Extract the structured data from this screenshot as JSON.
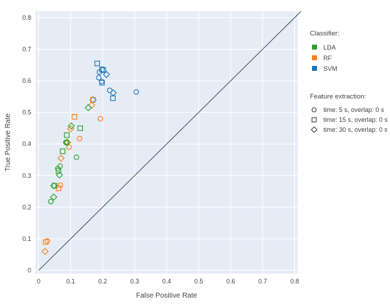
{
  "chart_data": {
    "type": "scatter",
    "xlabel": "False Positive Rate",
    "ylabel": "True Positive Rate",
    "xlim": [
      -0.01,
      0.81
    ],
    "ylim": [
      -0.01,
      0.82
    ],
    "xticks": [
      0,
      0.1,
      0.2,
      0.3,
      0.4,
      0.5,
      0.6,
      0.7,
      0.8
    ],
    "yticks": [
      0,
      0.1,
      0.2,
      0.3,
      0.4,
      0.5,
      0.6,
      0.7,
      0.8
    ],
    "tick_labels": {
      "x": [
        "0",
        "0.1",
        "0.2",
        "0.3",
        "0.4",
        "0.5",
        "0.6",
        "0.7",
        "0.8"
      ],
      "y": [
        "0",
        "0.1",
        "0.2",
        "0.3",
        "0.4",
        "0.5",
        "0.6",
        "0.7",
        "0.8"
      ]
    },
    "grid": true,
    "diagonal_line": [
      [
        0,
        0
      ],
      [
        0.82,
        0.82
      ]
    ],
    "legend": {
      "placement": "right",
      "classifier_title": "Classifier:",
      "classifiers": [
        {
          "name": "LDA",
          "color": "#2ca02c"
        },
        {
          "name": "RF",
          "color": "#ff7f0e"
        },
        {
          "name": "SVM",
          "color": "#1f77b4"
        }
      ],
      "feature_title": "Feature extraction:",
      "features": [
        {
          "name": "time: 5 s, overlap: 0 s",
          "marker": "circle"
        },
        {
          "name": "time: 15 s, overlap: 0 s",
          "marker": "square"
        },
        {
          "name": "time: 30 s, overlap: 0 s",
          "marker": "diamond"
        }
      ]
    },
    "points": [
      {
        "x": 0.305,
        "y": 0.565,
        "classifier": "SVM",
        "marker": "circle"
      },
      {
        "x": 0.222,
        "y": 0.57,
        "classifier": "SVM",
        "marker": "circle"
      },
      {
        "x": 0.188,
        "y": 0.61,
        "classifier": "SVM",
        "marker": "circle"
      },
      {
        "x": 0.19,
        "y": 0.628,
        "classifier": "SVM",
        "marker": "circle"
      },
      {
        "x": 0.197,
        "y": 0.598,
        "classifier": "SVM",
        "marker": "circle"
      },
      {
        "x": 0.183,
        "y": 0.655,
        "classifier": "SVM",
        "marker": "square"
      },
      {
        "x": 0.198,
        "y": 0.636,
        "classifier": "SVM",
        "marker": "square"
      },
      {
        "x": 0.202,
        "y": 0.634,
        "classifier": "SVM",
        "marker": "square"
      },
      {
        "x": 0.198,
        "y": 0.594,
        "classifier": "SVM",
        "marker": "square"
      },
      {
        "x": 0.232,
        "y": 0.545,
        "classifier": "SVM",
        "marker": "square"
      },
      {
        "x": 0.212,
        "y": 0.62,
        "classifier": "SVM",
        "marker": "diamond"
      },
      {
        "x": 0.233,
        "y": 0.562,
        "classifier": "SVM",
        "marker": "diamond"
      },
      {
        "x": 0.17,
        "y": 0.54,
        "classifier": "SVM",
        "marker": "diamond"
      },
      {
        "x": 0.193,
        "y": 0.48,
        "classifier": "RF",
        "marker": "circle"
      },
      {
        "x": 0.128,
        "y": 0.417,
        "classifier": "RF",
        "marker": "circle"
      },
      {
        "x": 0.095,
        "y": 0.39,
        "classifier": "RF",
        "marker": "circle"
      },
      {
        "x": 0.068,
        "y": 0.27,
        "classifier": "RF",
        "marker": "circle"
      },
      {
        "x": 0.027,
        "y": 0.093,
        "classifier": "RF",
        "marker": "circle"
      },
      {
        "x": 0.112,
        "y": 0.486,
        "classifier": "RF",
        "marker": "square"
      },
      {
        "x": 0.17,
        "y": 0.54,
        "classifier": "RF",
        "marker": "square"
      },
      {
        "x": 0.062,
        "y": 0.26,
        "classifier": "RF",
        "marker": "square"
      },
      {
        "x": 0.022,
        "y": 0.09,
        "classifier": "RF",
        "marker": "square"
      },
      {
        "x": 0.166,
        "y": 0.523,
        "classifier": "RF",
        "marker": "diamond"
      },
      {
        "x": 0.1,
        "y": 0.448,
        "classifier": "RF",
        "marker": "diamond"
      },
      {
        "x": 0.09,
        "y": 0.405,
        "classifier": "RF",
        "marker": "diamond"
      },
      {
        "x": 0.07,
        "y": 0.355,
        "classifier": "RF",
        "marker": "diamond"
      },
      {
        "x": 0.02,
        "y": 0.06,
        "classifier": "RF",
        "marker": "diamond"
      },
      {
        "x": 0.118,
        "y": 0.358,
        "classifier": "LDA",
        "marker": "circle"
      },
      {
        "x": 0.085,
        "y": 0.405,
        "classifier": "LDA",
        "marker": "circle"
      },
      {
        "x": 0.067,
        "y": 0.33,
        "classifier": "LDA",
        "marker": "circle"
      },
      {
        "x": 0.06,
        "y": 0.322,
        "classifier": "LDA",
        "marker": "circle"
      },
      {
        "x": 0.038,
        "y": 0.218,
        "classifier": "LDA",
        "marker": "circle"
      },
      {
        "x": 0.13,
        "y": 0.45,
        "classifier": "LDA",
        "marker": "square"
      },
      {
        "x": 0.088,
        "y": 0.428,
        "classifier": "LDA",
        "marker": "square"
      },
      {
        "x": 0.075,
        "y": 0.377,
        "classifier": "LDA",
        "marker": "square"
      },
      {
        "x": 0.062,
        "y": 0.315,
        "classifier": "LDA",
        "marker": "square"
      },
      {
        "x": 0.05,
        "y": 0.268,
        "classifier": "LDA",
        "marker": "square"
      },
      {
        "x": 0.155,
        "y": 0.515,
        "classifier": "LDA",
        "marker": "diamond"
      },
      {
        "x": 0.102,
        "y": 0.457,
        "classifier": "LDA",
        "marker": "diamond"
      },
      {
        "x": 0.088,
        "y": 0.405,
        "classifier": "LDA",
        "marker": "diamond"
      },
      {
        "x": 0.065,
        "y": 0.302,
        "classifier": "LDA",
        "marker": "diamond"
      },
      {
        "x": 0.047,
        "y": 0.268,
        "classifier": "LDA",
        "marker": "diamond"
      },
      {
        "x": 0.047,
        "y": 0.232,
        "classifier": "LDA",
        "marker": "diamond"
      }
    ]
  }
}
